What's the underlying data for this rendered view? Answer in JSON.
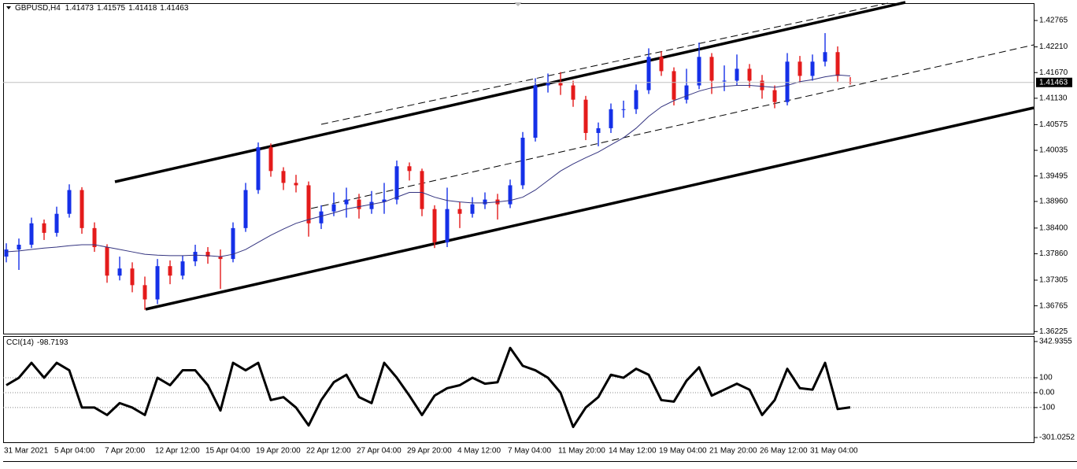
{
  "chart_data": [
    {
      "type": "candlestick",
      "title": "GBPUSD,H4",
      "categories": [
        "31 Mar 2021",
        null,
        null,
        null,
        "5 Apr 04:00",
        null,
        null,
        null,
        "7 Apr 20:00",
        null,
        null,
        null,
        "12 Apr 12:00",
        null,
        null,
        null,
        "15 Apr 04:00",
        null,
        null,
        null,
        "19 Apr 20:00",
        null,
        null,
        null,
        "22 Apr 12:00",
        null,
        null,
        null,
        "27 Apr 04:00",
        null,
        null,
        null,
        "29 Apr 20:00",
        null,
        null,
        null,
        "4 May 12:00",
        null,
        null,
        null,
        "7 May 04:00",
        null,
        null,
        null,
        "11 May 20:00",
        null,
        null,
        null,
        "14 May 12:00",
        null,
        null,
        null,
        "19 May 04:00",
        null,
        null,
        null,
        "21 May 20:00",
        null,
        null,
        null,
        "26 May 12:00",
        null,
        null,
        null,
        "31 May 04:00",
        null,
        null,
        null
      ],
      "ohlc": [
        [
          1.378,
          1.3808,
          1.3768,
          1.3795
        ],
        [
          1.3795,
          1.3818,
          1.3752,
          1.3805
        ],
        [
          1.3805,
          1.3862,
          1.3798,
          1.385
        ],
        [
          1.385,
          1.3858,
          1.3815,
          1.383
        ],
        [
          1.383,
          1.3885,
          1.3822,
          1.387
        ],
        [
          1.387,
          1.3932,
          1.3862,
          1.392
        ],
        [
          1.392,
          1.3926,
          1.3828,
          1.384
        ],
        [
          1.384,
          1.3852,
          1.379,
          1.38
        ],
        [
          1.38,
          1.3806,
          1.3725,
          1.374
        ],
        [
          1.374,
          1.378,
          1.373,
          1.3755
        ],
        [
          1.3755,
          1.3768,
          1.3705,
          1.372
        ],
        [
          1.372,
          1.3738,
          1.3668,
          1.369
        ],
        [
          1.369,
          1.3775,
          1.368,
          1.376
        ],
        [
          1.376,
          1.3772,
          1.3722,
          1.374
        ],
        [
          1.374,
          1.3782,
          1.3732,
          1.377
        ],
        [
          1.377,
          1.3805,
          1.376,
          1.379
        ],
        [
          1.379,
          1.38,
          1.3765,
          1.378
        ],
        [
          1.378,
          1.3795,
          1.3712,
          1.3775
        ],
        [
          1.3775,
          1.3852,
          1.3768,
          1.384
        ],
        [
          1.384,
          1.3935,
          1.3832,
          1.392
        ],
        [
          1.392,
          1.402,
          1.3912,
          1.401
        ],
        [
          1.401,
          1.4018,
          1.3948,
          1.396
        ],
        [
          1.396,
          1.3968,
          1.392,
          1.3935
        ],
        [
          1.3935,
          1.3952,
          1.3915,
          1.393
        ],
        [
          1.393,
          1.3938,
          1.3822,
          1.385
        ],
        [
          1.385,
          1.3888,
          1.3838,
          1.3875
        ],
        [
          1.3875,
          1.3915,
          1.3865,
          1.389
        ],
        [
          1.389,
          1.3925,
          1.3862,
          1.39
        ],
        [
          1.39,
          1.3912,
          1.386,
          1.388
        ],
        [
          1.388,
          1.3918,
          1.387,
          1.3895
        ],
        [
          1.3895,
          1.3935,
          1.387,
          1.39
        ],
        [
          1.39,
          1.3982,
          1.389,
          1.397
        ],
        [
          1.397,
          1.3978,
          1.394,
          1.396
        ],
        [
          1.396,
          1.3965,
          1.3865,
          1.388
        ],
        [
          1.388,
          1.3888,
          1.3798,
          1.381
        ],
        [
          1.381,
          1.3925,
          1.38,
          1.388
        ],
        [
          1.388,
          1.3895,
          1.384,
          1.387
        ],
        [
          1.387,
          1.3905,
          1.3862,
          1.389
        ],
        [
          1.389,
          1.3915,
          1.388,
          1.39
        ],
        [
          1.39,
          1.3912,
          1.3858,
          1.389
        ],
        [
          1.389,
          1.3942,
          1.3882,
          1.393
        ],
        [
          1.393,
          1.4042,
          1.3922,
          1.403
        ],
        [
          1.403,
          1.4155,
          1.4022,
          1.414
        ],
        [
          1.414,
          1.4165,
          1.4125,
          1.4145
        ],
        [
          1.4145,
          1.4168,
          1.412,
          1.414
        ],
        [
          1.414,
          1.415,
          1.4095,
          1.411
        ],
        [
          1.411,
          1.4118,
          1.4025,
          1.404
        ],
        [
          1.404,
          1.4062,
          1.4012,
          1.405
        ],
        [
          1.405,
          1.4102,
          1.404,
          1.409
        ],
        [
          1.409,
          1.4108,
          1.4072,
          1.409
        ],
        [
          1.409,
          1.4142,
          1.408,
          1.413
        ],
        [
          1.413,
          1.4218,
          1.4122,
          1.42
        ],
        [
          1.42,
          1.4212,
          1.416,
          1.417
        ],
        [
          1.417,
          1.4178,
          1.4098,
          1.411
        ],
        [
          1.411,
          1.4175,
          1.4102,
          1.414
        ],
        [
          1.414,
          1.423,
          1.4132,
          1.42
        ],
        [
          1.42,
          1.4208,
          1.4122,
          1.415
        ],
        [
          1.415,
          1.4182,
          1.4128,
          1.415
        ],
        [
          1.415,
          1.4205,
          1.414,
          1.4175
        ],
        [
          1.4175,
          1.4185,
          1.4135,
          1.415
        ],
        [
          1.415,
          1.4162,
          1.4112,
          1.413
        ],
        [
          1.413,
          1.414,
          1.4092,
          1.4105
        ],
        [
          1.4105,
          1.4208,
          1.4098,
          1.419
        ],
        [
          1.419,
          1.4202,
          1.4145,
          1.416
        ],
        [
          1.416,
          1.4205,
          1.415,
          1.419
        ],
        [
          1.419,
          1.425,
          1.418,
          1.421
        ],
        [
          1.421,
          1.4222,
          1.4148,
          1.416
        ],
        [
          1.41473,
          1.41575,
          1.41418,
          1.41463
        ]
      ],
      "up_color": "#1530e8",
      "down_color": "#e41b1b",
      "moving_average": [
        1.379,
        1.3792,
        1.3795,
        1.3798,
        1.38,
        1.3803,
        1.3805,
        1.3805,
        1.38,
        1.3795,
        1.379,
        1.3785,
        1.3783,
        1.3782,
        1.3782,
        1.3783,
        1.3782,
        1.378,
        1.3785,
        1.3795,
        1.381,
        1.3825,
        1.3838,
        1.385,
        1.3858,
        1.3865,
        1.3872,
        1.388,
        1.3885,
        1.389,
        1.3895,
        1.3905,
        1.3915,
        1.3915,
        1.3905,
        1.3898,
        1.3895,
        1.3893,
        1.3893,
        1.3895,
        1.3898,
        1.3905,
        1.392,
        1.394,
        1.396,
        1.3975,
        1.3988,
        1.4,
        1.4015,
        1.403,
        1.405,
        1.4075,
        1.4095,
        1.4108,
        1.4118,
        1.4128,
        1.4135,
        1.4138,
        1.414,
        1.414,
        1.4138,
        1.4136,
        1.414,
        1.4148,
        1.4152,
        1.4158,
        1.4162,
        1.416
      ],
      "ma_color": "#33337f",
      "ylim": [
        1.3618,
        1.4313
      ],
      "yticks": [
        1.42765,
        {
          "value": 1.4221,
          "label": "1.42210"
        },
        {
          "value": 1.4167,
          "label": "1.41670"
        },
        {
          "value": 1.4113,
          "label": "1.41130"
        },
        1.40575,
        1.40035,
        1.39495,
        {
          "value": 1.3896,
          "label": "1.38960"
        },
        {
          "value": 1.384,
          "label": "1.38400"
        },
        {
          "value": 1.3786,
          "label": "1.37860"
        },
        1.37305,
        1.36765,
        1.36225
      ],
      "grid": false
    },
    {
      "type": "line",
      "title": "CCI(14)",
      "color": "#000000",
      "values": [
        50,
        100,
        200,
        100,
        200,
        150,
        -100,
        -100,
        -150,
        -70,
        -100,
        -150,
        100,
        50,
        150,
        150,
        50,
        -120,
        200,
        150,
        200,
        -50,
        -30,
        -100,
        -220,
        -50,
        70,
        120,
        -30,
        -70,
        200,
        100,
        -20,
        -150,
        -20,
        30,
        50,
        100,
        60,
        70,
        300,
        180,
        150,
        100,
        0,
        -230,
        -100,
        -30,
        120,
        100,
        160,
        120,
        -50,
        -60,
        80,
        170,
        -20,
        20,
        60,
        20,
        -150,
        -50,
        160,
        30,
        20,
        200,
        -110,
        -98.7193
      ],
      "ylim": [
        -301.0252,
        342.9355
      ],
      "yticks": [
        342.9355,
        100,
        {
          "value": 0,
          "label": "0.00"
        },
        -100,
        -301.0252
      ],
      "grid": true
    }
  ]
}
